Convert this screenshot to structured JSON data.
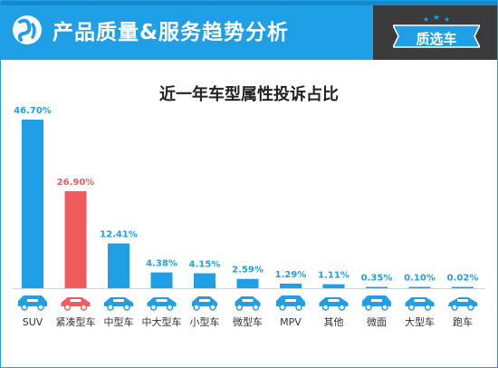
{
  "header": {
    "title": "产品质量&服务趋势分析",
    "badge_label": "质选车",
    "brand_color": "#1e9fe6",
    "badge_color": "#3b3b3b"
  },
  "chart_data": {
    "type": "bar",
    "title": "近一年车型属性投诉占比",
    "xlabel": "",
    "ylabel": "",
    "categories": [
      "SUV",
      "紧凑型车",
      "中型车",
      "中大型车",
      "小型车",
      "微型车",
      "MPV",
      "其他",
      "微面",
      "大型车",
      "跑车"
    ],
    "values": [
      46.7,
      26.9,
      12.41,
      4.38,
      4.15,
      2.59,
      1.29,
      1.11,
      0.35,
      0.1,
      0.02
    ],
    "data_labels": [
      "46.70%",
      "26.90%",
      "12.41%",
      "4.38%",
      "4.15%",
      "2.59%",
      "1.29%",
      "1.11%",
      "0.35%",
      "0.10%",
      "0.02%"
    ],
    "unit": "%",
    "ylim": [
      0,
      50
    ],
    "grid": false,
    "colors": {
      "default": "#1e9fe6",
      "highlight": "#f25b5b",
      "label_default": "#1e9fe6",
      "label_highlight": "#f25b5b"
    },
    "highlight_index": 1,
    "category_icons": [
      "suv-icon",
      "sedan-icon",
      "sedan-icon",
      "sedan-icon",
      "hatchback-icon",
      "microcar-icon",
      "mpv-icon",
      "sedan-icon",
      "van-icon",
      "sedan-icon",
      "sports-car-icon"
    ]
  }
}
